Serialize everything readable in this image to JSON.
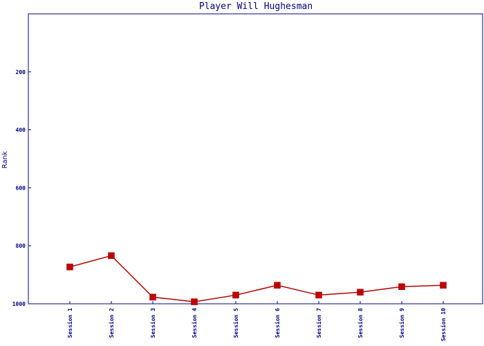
{
  "chart_data": {
    "type": "line",
    "title": "Player Will Hughesman",
    "xlabel": "",
    "ylabel": "Rank",
    "categories": [
      "Session 1",
      "Session 2",
      "Session 3",
      "Session 4",
      "Session 5",
      "Session 6",
      "Session 7",
      "Session 8",
      "Session 9",
      "Session 10"
    ],
    "values": [
      873,
      834,
      977,
      993,
      970,
      936,
      970,
      960,
      941,
      936
    ],
    "ylim": [
      1000,
      0
    ],
    "yticks": [
      200,
      400,
      600,
      800,
      1000
    ],
    "y_inverted": true,
    "grid": false,
    "legend": "none",
    "colors": {
      "axis": "#000080",
      "line": "#b00000",
      "marker": "#c00000",
      "text": "#000080"
    }
  }
}
